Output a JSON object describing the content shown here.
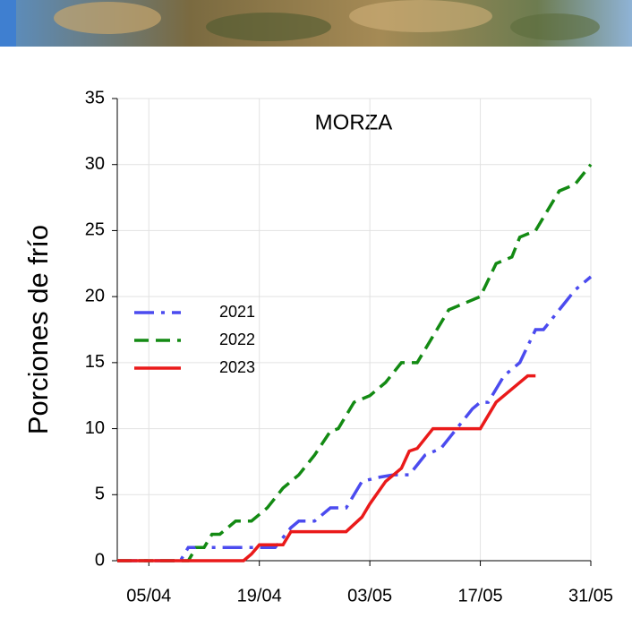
{
  "chart_data": {
    "type": "line",
    "title": "MORZA",
    "y_label": "Porciones de frío",
    "xlim": [
      "01/04",
      "31/05"
    ],
    "xticks": [
      "05/04",
      "19/04",
      "03/05",
      "17/05",
      "31/05"
    ],
    "ylim": [
      0,
      35
    ],
    "yticks": [
      0,
      5,
      10,
      15,
      20,
      25,
      30,
      35
    ],
    "grid": true,
    "legend": "left",
    "series": [
      {
        "name": "2021",
        "color": "#4b4bef",
        "style": "dashdot",
        "x": [
          "01/04",
          "09/04",
          "10/04",
          "20/04",
          "21/04",
          "23/04",
          "24/04",
          "26/04",
          "28/04",
          "30/04",
          "02/05",
          "04/05",
          "06/05",
          "08/05",
          "10/05",
          "12/05",
          "14/05",
          "16/05",
          "17/05",
          "18/05",
          "20/05",
          "22/05",
          "24/05",
          "25/05",
          "27/05",
          "29/05",
          "31/05"
        ],
        "values": [
          0,
          0,
          1,
          1,
          1,
          2.5,
          3,
          3,
          4,
          4,
          6,
          6.3,
          6.5,
          6.5,
          8,
          8.5,
          10,
          11.5,
          12,
          12,
          14,
          15,
          17.5,
          17.5,
          19,
          20.5,
          21.5
        ]
      },
      {
        "name": "2022",
        "color": "#138a13",
        "style": "dashed",
        "x": [
          "01/04",
          "10/04",
          "11/04",
          "12/04",
          "13/04",
          "14/04",
          "16/04",
          "18/04",
          "20/04",
          "22/04",
          "24/04",
          "26/04",
          "28/04",
          "29/04",
          "01/05",
          "03/05",
          "05/05",
          "07/05",
          "09/05",
          "11/05",
          "13/05",
          "17/05",
          "19/05",
          "21/05",
          "22/05",
          "24/05",
          "26/05",
          "27/05",
          "29/05",
          "31/05"
        ],
        "values": [
          0,
          0,
          1,
          1,
          2,
          2,
          3,
          3,
          4,
          5.5,
          6.5,
          8,
          9.8,
          10,
          12,
          12.5,
          13.5,
          15,
          15,
          17,
          19,
          20,
          22.5,
          23,
          24.5,
          25,
          27,
          28,
          28.5,
          30
        ]
      },
      {
        "name": "2023",
        "color": "#ea1a1a",
        "style": "solid",
        "x": [
          "01/04",
          "17/04",
          "18/04",
          "19/04",
          "22/04",
          "23/04",
          "30/04",
          "02/05",
          "03/05",
          "05/05",
          "07/05",
          "08/05",
          "09/05",
          "11/05",
          "17/05",
          "19/05",
          "20/05",
          "21/05",
          "23/05",
          "24/05"
        ],
        "values": [
          0,
          0,
          0.5,
          1.2,
          1.2,
          2.2,
          2.2,
          3.3,
          4.3,
          6,
          7,
          8.3,
          8.5,
          10,
          10,
          12,
          12.5,
          13,
          14,
          14
        ]
      }
    ]
  }
}
